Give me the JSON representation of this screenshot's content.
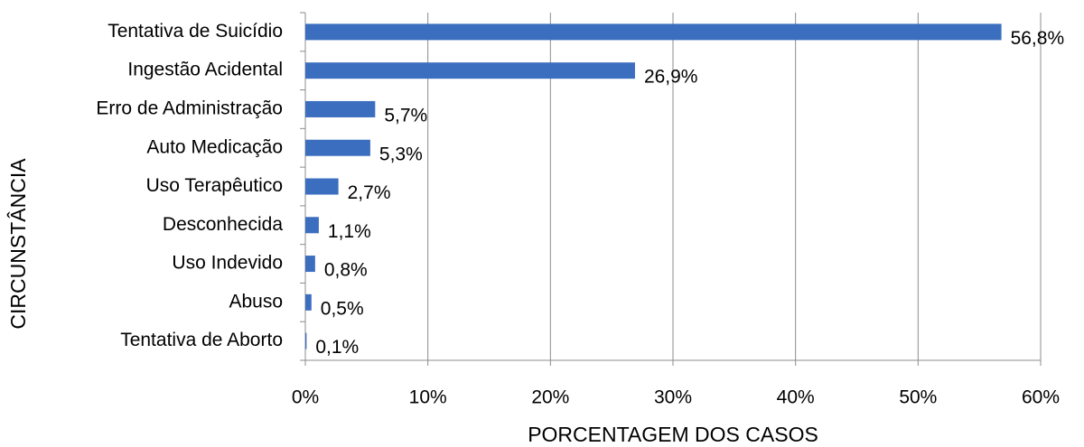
{
  "chart_data": {
    "type": "bar",
    "orientation": "horizontal",
    "x_label": "PORCENTAGEM DOS CASOS",
    "y_label": "CIRCUNSTÂNCIA",
    "categories": [
      "Tentativa de Suicídio",
      "Ingestão Acidental",
      "Erro de Administração",
      "Auto Medicação",
      "Uso Terapêutico",
      "Desconhecida",
      "Uso Indevido",
      "Abuso",
      "Tentativa de Aborto"
    ],
    "values": [
      56.8,
      26.9,
      5.7,
      5.3,
      2.7,
      1.1,
      0.8,
      0.5,
      0.1
    ],
    "value_labels": [
      "56,8%",
      "26,9%",
      "5,7%",
      "5,3%",
      "2,7%",
      "1,1%",
      "0,8%",
      "0,5%",
      "0,1%"
    ],
    "color": "#3c6ebf",
    "xlim": [
      0,
      60
    ],
    "xticks": [
      {
        "value": 0,
        "label": "0%"
      },
      {
        "value": 10,
        "label": "10%"
      },
      {
        "value": 20,
        "label": "20%"
      },
      {
        "value": 30,
        "label": "30%"
      },
      {
        "value": 40,
        "label": "40%"
      },
      {
        "value": 50,
        "label": "50%"
      },
      {
        "value": 60,
        "label": "60%"
      }
    ],
    "grid": true
  }
}
